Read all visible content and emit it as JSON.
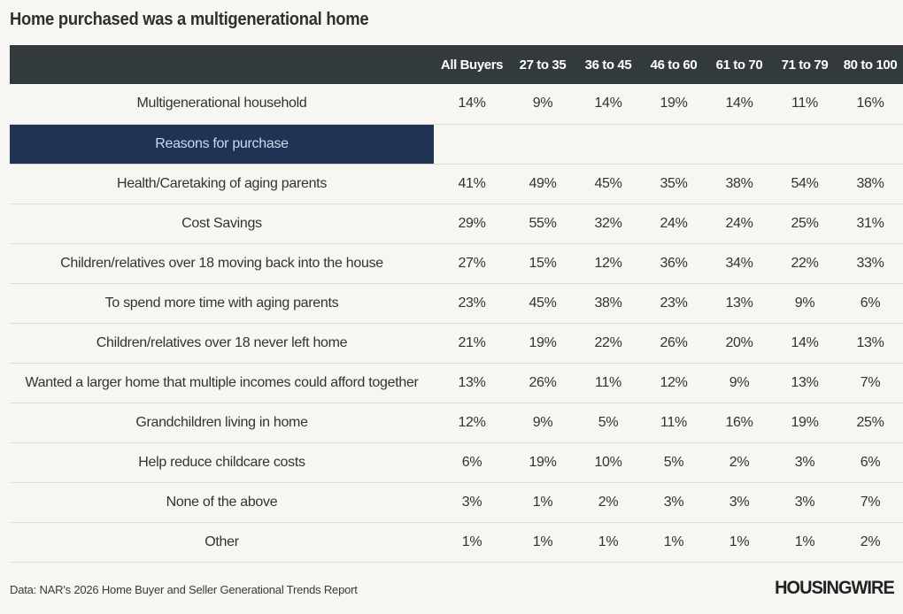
{
  "header": {
    "title": "Home purchased was a multigenerational home"
  },
  "table": {
    "columns": [
      "All Buyers",
      "27 to 35",
      "36 to 45",
      "46 to 60",
      "61 to 70",
      "71 to 79",
      "80 to 100"
    ],
    "top_row": {
      "label": "Multigenerational household",
      "values": [
        "14%",
        "9%",
        "14%",
        "19%",
        "14%",
        "11%",
        "16%"
      ]
    },
    "section_label": "Reasons for purchase",
    "rows": [
      {
        "label": "Health/Caretaking of aging parents",
        "values": [
          "41%",
          "49%",
          "45%",
          "35%",
          "38%",
          "54%",
          "38%"
        ]
      },
      {
        "label": "Cost Savings",
        "values": [
          "29%",
          "55%",
          "32%",
          "24%",
          "24%",
          "25%",
          "31%"
        ]
      },
      {
        "label": "Children/relatives over 18 moving back into the house",
        "values": [
          "27%",
          "15%",
          "12%",
          "36%",
          "34%",
          "22%",
          "33%"
        ]
      },
      {
        "label": "To spend more time with aging parents",
        "values": [
          "23%",
          "45%",
          "38%",
          "23%",
          "13%",
          "9%",
          "6%"
        ]
      },
      {
        "label": "Children/relatives over 18 never left home",
        "values": [
          "21%",
          "19%",
          "22%",
          "26%",
          "20%",
          "14%",
          "13%"
        ]
      },
      {
        "label": "Wanted a larger home that multiple incomes could afford together",
        "values": [
          "13%",
          "26%",
          "11%",
          "12%",
          "9%",
          "13%",
          "7%"
        ]
      },
      {
        "label": "Grandchildren living in home",
        "values": [
          "12%",
          "9%",
          "5%",
          "11%",
          "16%",
          "19%",
          "25%"
        ]
      },
      {
        "label": "Help reduce childcare costs",
        "values": [
          "6%",
          "19%",
          "10%",
          "5%",
          "2%",
          "3%",
          "6%"
        ]
      },
      {
        "label": "None of the above",
        "values": [
          "3%",
          "1%",
          "2%",
          "3%",
          "3%",
          "3%",
          "7%"
        ]
      },
      {
        "label": "Other",
        "values": [
          "1%",
          "1%",
          "1%",
          "1%",
          "1%",
          "1%",
          "2%"
        ]
      }
    ]
  },
  "footer": {
    "source": "Data: NAR's 2026 Home Buyer and Seller Generational Trends Report",
    "logo": "HOUSINGWIRE"
  },
  "colors": {
    "background": "#f8f6f2",
    "header_band": "#323a3c",
    "section_band": "#1f3354",
    "section_text": "#c9dbef"
  },
  "chart_data": {
    "type": "table",
    "title": "Home purchased was a multigenerational home",
    "columns": [
      "All Buyers",
      "27 to 35",
      "36 to 45",
      "46 to 60",
      "61 to 70",
      "71 to 79",
      "80 to 100"
    ],
    "rows": [
      {
        "label": "Multigenerational household",
        "values": [
          14,
          9,
          14,
          19,
          14,
          11,
          16
        ]
      },
      {
        "section": "Reasons for purchase"
      },
      {
        "label": "Health/Caretaking of aging parents",
        "values": [
          41,
          49,
          45,
          35,
          38,
          54,
          38
        ]
      },
      {
        "label": "Cost Savings",
        "values": [
          29,
          55,
          32,
          24,
          24,
          25,
          31
        ]
      },
      {
        "label": "Children/relatives over 18 moving back into the house",
        "values": [
          27,
          15,
          12,
          36,
          34,
          22,
          33
        ]
      },
      {
        "label": "To spend more time with aging parents",
        "values": [
          23,
          45,
          38,
          23,
          13,
          9,
          6
        ]
      },
      {
        "label": "Children/relatives over 18 never left home",
        "values": [
          21,
          19,
          22,
          26,
          20,
          14,
          13
        ]
      },
      {
        "label": "Wanted a larger home that multiple incomes could afford together",
        "values": [
          13,
          26,
          11,
          12,
          9,
          13,
          7
        ]
      },
      {
        "label": "Grandchildren living in home",
        "values": [
          12,
          9,
          5,
          11,
          16,
          19,
          25
        ]
      },
      {
        "label": "Help reduce childcare costs",
        "values": [
          6,
          19,
          10,
          5,
          2,
          3,
          6
        ]
      },
      {
        "label": "None of the above",
        "values": [
          3,
          1,
          2,
          3,
          3,
          3,
          7
        ]
      },
      {
        "label": "Other",
        "values": [
          1,
          1,
          1,
          1,
          1,
          1,
          2
        ]
      }
    ],
    "unit": "%",
    "source": "Data: NAR's 2026 Home Buyer and Seller Generational Trends Report"
  }
}
